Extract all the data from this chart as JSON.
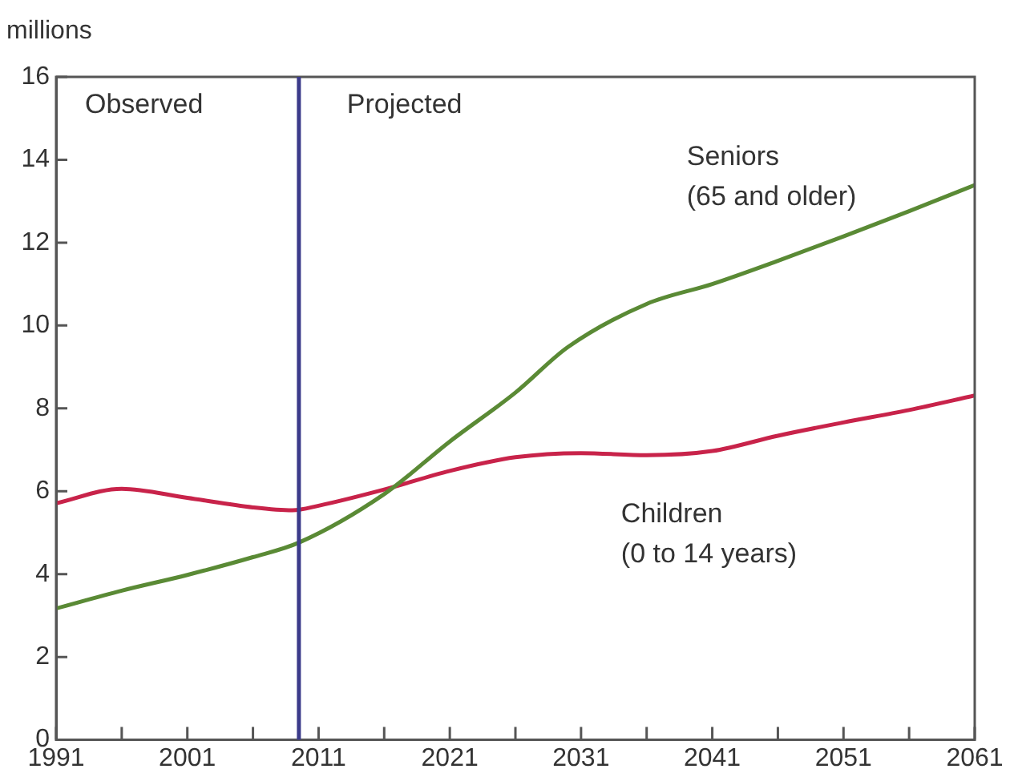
{
  "chart_data": {
    "type": "line",
    "ylabel": "millions",
    "annotations": [
      "Observed",
      "Projected"
    ],
    "xlim": [
      1991,
      2061
    ],
    "xticks": [
      1991,
      {
        "value": 1996,
        "label": null
      },
      2001,
      {
        "value": 2006,
        "label": null
      },
      2011,
      {
        "value": 2016,
        "label": null
      },
      2021,
      {
        "value": 2026,
        "label": null
      },
      2031,
      {
        "value": 2036,
        "label": null
      },
      2041,
      {
        "value": 2046,
        "label": null
      },
      2051,
      {
        "value": 2056,
        "label": null
      },
      2061
    ],
    "ylim": [
      0,
      16
    ],
    "yticks": [
      0,
      2,
      4,
      6,
      8,
      10,
      12,
      14,
      16
    ],
    "grid": false,
    "legend": false,
    "marker": "none",
    "line_style": "solid",
    "ref_lines": [
      {
        "axis": "x",
        "value": 2009.5,
        "color": "#3b3a8a"
      }
    ],
    "series": [
      {
        "name": "Seniors\n(65 and older)",
        "color": "#5a8a35",
        "x": [
          1991,
          1996,
          2001,
          2006,
          2009.5,
          2016,
          2021,
          2026,
          2030,
          2036,
          2041,
          2046,
          2051,
          2056,
          2061
        ],
        "values": [
          3.17,
          3.6,
          3.98,
          4.41,
          4.76,
          5.93,
          7.2,
          8.38,
          9.48,
          10.52,
          11.0,
          11.56,
          12.15,
          12.76,
          13.39
        ]
      },
      {
        "name": "Children\n(0 to 14 years)",
        "color": "#c8234a",
        "x": [
          1991,
          1996,
          2001,
          2006,
          2009,
          2011,
          2016,
          2021,
          2026,
          2031,
          2036,
          2041,
          2046,
          2051,
          2056,
          2061
        ],
        "values": [
          5.71,
          6.06,
          5.84,
          5.61,
          5.54,
          5.65,
          6.04,
          6.49,
          6.82,
          6.92,
          6.87,
          6.97,
          7.34,
          7.66,
          7.96,
          8.31
        ]
      }
    ]
  }
}
